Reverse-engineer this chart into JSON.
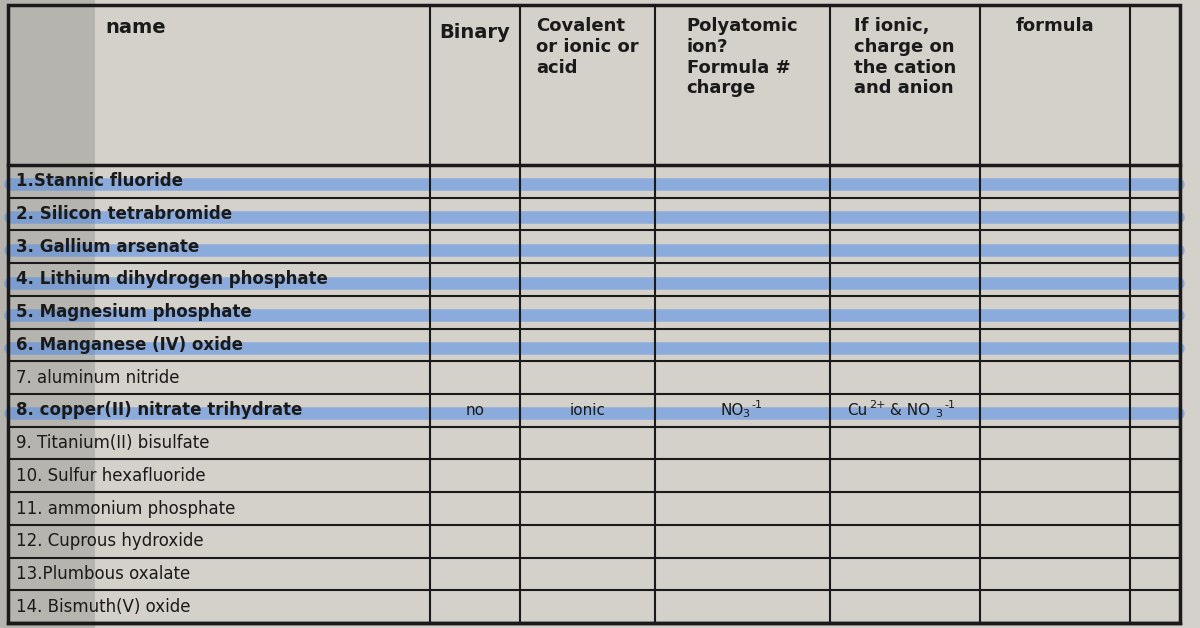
{
  "bg_color": "#b8b4ae",
  "paper_color": "#d8d4ce",
  "table_color": "#d0ccc6",
  "line_color": "#1a1a1a",
  "blue_color": "#4488ee",
  "name_label": "name",
  "col_headers": [
    "Binary",
    "Covalent\nor ionic or\nacid",
    "Polyatomic\nion?\nFormula #\ncharge",
    "If ionic,\ncharge on\nthe cation\nand anion",
    "formula"
  ],
  "row_labels": [
    "1.Stannic fluoride",
    "2. Silicon tetrabromide",
    "3. Gallium arsenate",
    "4. Lithium dihydrogen phosphate",
    "5. Magnesium phosphate",
    "6. Manganese (IV) oxide",
    "7. aluminum nitride",
    "8. copper(II) nitrate trihydrate",
    "9. Titanium(II) bisulfate",
    "10. Sulfur hexafluoride",
    "11. ammonium phosphate",
    "12. Cuprous hydroxide",
    "13.Plumbous oxalate",
    "14. Bismuth(V) oxide"
  ],
  "highlighted_rows": [
    0,
    1,
    2,
    3,
    4,
    5,
    7
  ],
  "bold_rows": [
    0,
    1,
    2,
    3,
    4,
    5,
    7
  ],
  "row8_idx": 7,
  "row8_binary": "no",
  "row8_ionic": "ionic",
  "n_rows": 14,
  "header_fontsize": 14,
  "label_fontsize": 12,
  "cell_fontsize": 11,
  "highlight_lw": 9,
  "highlight_alpha": 0.5
}
